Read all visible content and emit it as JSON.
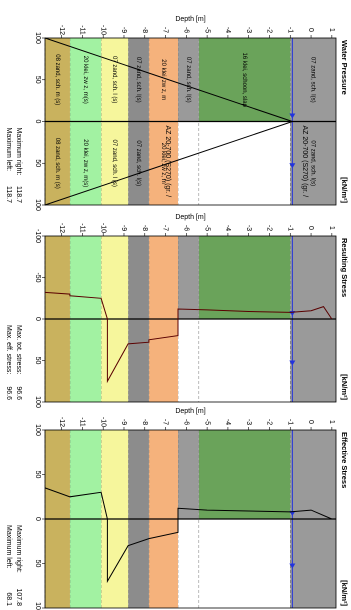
{
  "layers": [
    {
      "name": "07 zand, sch. l(s)",
      "top": 1.2,
      "bottom": -1,
      "color": "#9a9a9a",
      "both_sides": true
    },
    {
      "name": "16 klei, schoon, slap",
      "top": -1,
      "bottom": -5.4,
      "color": "#6aa35a",
      "both_sides": false
    },
    {
      "name": "07 zand, sch. l(s)",
      "top": -5.4,
      "bottom": -6.4,
      "color": "#9a9a9a",
      "both_sides": false
    },
    {
      "name": "20 klei, zw z, m",
      "top": -6.4,
      "bottom": -7.8,
      "color": "#f5b27c",
      "both_sides": true
    },
    {
      "name": "07 zand, sch. l(s)",
      "top": -7.8,
      "bottom": -8.8,
      "color": "#8c8c8c",
      "both_sides": true
    },
    {
      "name": "07 zand, sch. l (s)",
      "top": -8.8,
      "bottom": -10.1,
      "color": "#f6f69c",
      "both_sides": true
    },
    {
      "name": "20 klei, zw z, m(s)",
      "top": -10.1,
      "bottom": -11.6,
      "color": "#a2f2a2",
      "both_sides": true
    },
    {
      "name": "08 zand, sch. m (s)",
      "top": -11.6,
      "bottom": -12.8,
      "color": "#c9b25e",
      "both_sides": true
    }
  ],
  "water_level": -0.9,
  "annotation": "AZ 20-700 (S270) (gr. /",
  "chart_data": [
    {
      "type": "line",
      "title": "Water Pressure",
      "unit": "[kN/m²]",
      "xlabel": "Depth [m]",
      "xlim": [
        -12.8,
        1.2
      ],
      "xticks": [
        -12,
        -11,
        -10,
        -9,
        -8,
        -7,
        -6,
        -5,
        -4,
        -3,
        -2,
        -1,
        0,
        1
      ],
      "ylim": [
        -100,
        100
      ],
      "yticks": [
        {
          "value": -100,
          "label": "100"
        },
        {
          "value": -50,
          "label": "50"
        },
        0,
        50,
        100
      ],
      "show_layer_names": true,
      "x": [
        -0.9,
        -12.8
      ],
      "series": [
        {
          "color": "#000000",
          "values": [
            0,
            -118.7
          ]
        },
        {
          "color": "#000000",
          "values": [
            0,
            118.7
          ]
        }
      ],
      "notes": [
        {
          "label": "Maximum left:",
          "value": 118.7
        },
        {
          "label": "Maximum right:",
          "value": 118.7
        }
      ]
    },
    {
      "type": "line",
      "title": "Resulting Stress",
      "unit": "[kN/m²]",
      "xlabel": "Depth [m]",
      "xlim": [
        -12.8,
        1.2
      ],
      "xticks": [
        -12,
        -11,
        -10,
        -9,
        -8,
        -7,
        -6,
        -5,
        -4,
        -3,
        -2,
        -1,
        0,
        1
      ],
      "ylim": [
        -100,
        100
      ],
      "yticks": [
        -100,
        -50,
        0,
        50,
        100
      ],
      "show_layer_names": false,
      "x": [
        1.0,
        0.6,
        0,
        -1,
        -3,
        -5,
        -6.4,
        -6.4,
        -7.8,
        -7.8,
        -8.8,
        -9.8,
        -9.8,
        -10.1,
        -11.6,
        -11.6,
        -12.8
      ],
      "series": [
        {
          "color": "#5a0000",
          "values": [
            0,
            -15,
            -10,
            -8,
            -9,
            -11,
            -12,
            20,
            25,
            28,
            30,
            75,
            0,
            -25,
            -28,
            -30,
            -32
          ]
        }
      ],
      "notes": [
        {
          "label": "Max. eff. stress:",
          "value": 96.6
        },
        {
          "label": "Max. tot. stress:",
          "value": 96.6
        }
      ]
    },
    {
      "type": "line",
      "title": "Effective Stress",
      "unit": "[kN/m²]",
      "xlabel": "Depth [m]",
      "xlim": [
        -12.8,
        1.2
      ],
      "xticks": [
        -12,
        -11,
        -10,
        -9,
        -8,
        -7,
        -6,
        -5,
        -4,
        -3,
        -2,
        -1,
        0,
        1
      ],
      "ylim": [
        -100,
        100
      ],
      "yticks": [
        {
          "value": -100,
          "label": "100"
        },
        {
          "value": -50,
          "label": "50"
        },
        0,
        50,
        100
      ],
      "show_layer_names": false,
      "x": [
        1.0,
        0,
        -1,
        -3,
        -5,
        -6.4,
        -6.4,
        -7.8,
        -8.8,
        -9.8,
        -9.8,
        -10.1,
        -11.6,
        -12.8
      ],
      "series": [
        {
          "color": "#000000",
          "values": [
            0,
            -10,
            -8,
            -9,
            -10,
            -12,
            15,
            22,
            30,
            70,
            0,
            -30,
            -25,
            -35
          ]
        }
      ],
      "notes": [
        {
          "label": "Maximum left:",
          "value": 68.1
        },
        {
          "label": "Maximum right:",
          "value": 107.8
        }
      ]
    }
  ]
}
